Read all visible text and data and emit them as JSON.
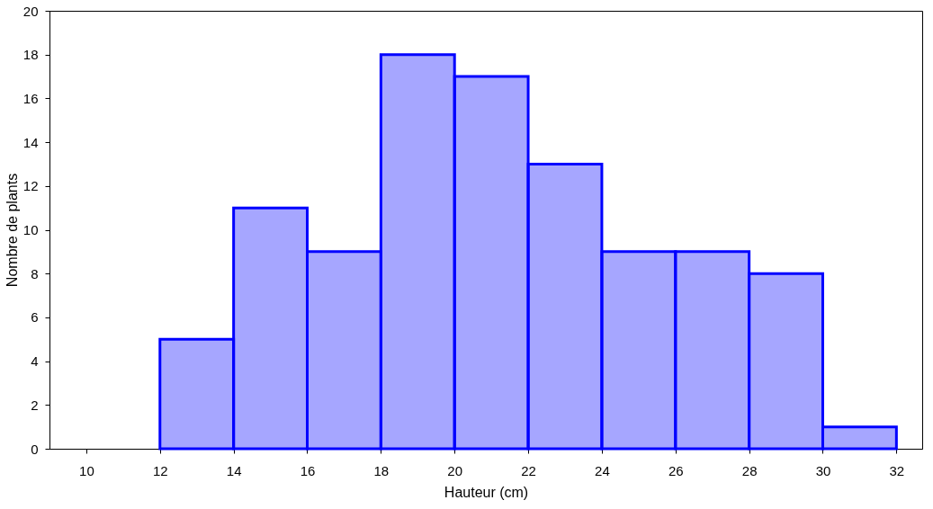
{
  "chart_data": {
    "type": "histogram",
    "xlabel": "Hauteur (cm)",
    "ylabel": "Nombre de plants",
    "bins": [
      12,
      14,
      16,
      18,
      20,
      22,
      24,
      26,
      28,
      30,
      32
    ],
    "values": [
      5,
      11,
      9,
      18,
      17,
      13,
      9,
      9,
      8,
      1
    ],
    "color": "#0000ff",
    "xlim": [
      9,
      32.7
    ],
    "xticks": [
      10,
      12,
      14,
      16,
      18,
      20,
      22,
      24,
      26,
      28,
      30,
      32
    ],
    "ylim": [
      0,
      20
    ],
    "yticks": [
      0,
      2,
      4,
      6,
      8,
      10,
      12,
      14,
      16,
      18,
      20
    ],
    "grid": false
  }
}
